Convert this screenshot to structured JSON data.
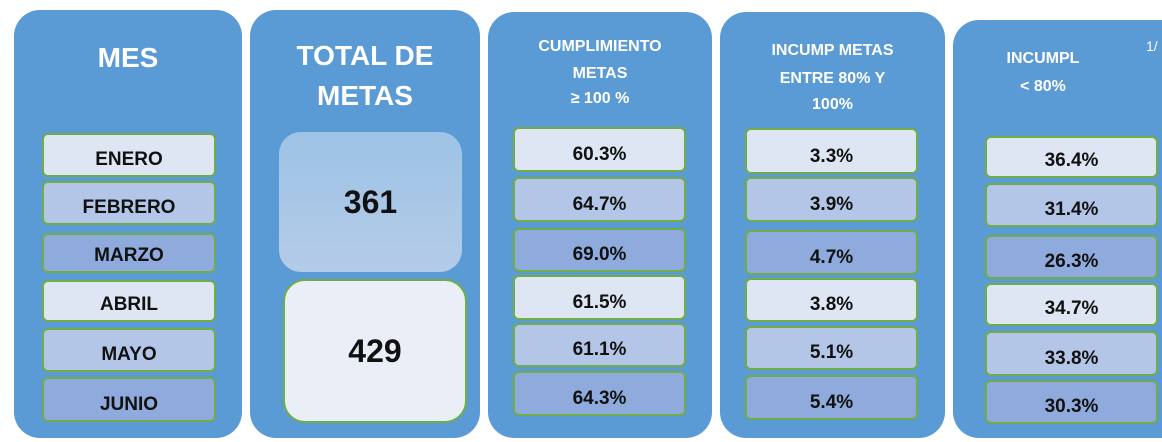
{
  "page_number": "1/",
  "columns": [
    {
      "header": [
        "MES"
      ],
      "cells": [
        "ENERO",
        "FEBRERO",
        "MARZO",
        "ABRIL",
        "MAYO",
        "JUNIO"
      ]
    },
    {
      "header": [
        "TOTAL DE",
        "METAS"
      ],
      "totals": [
        "361",
        "429"
      ]
    },
    {
      "header": [
        "CUMPLIMIENTO",
        "METAS",
        "≥ 100 %"
      ],
      "cells": [
        "60.3%",
        "64.7%",
        "69.0%",
        "61.5%",
        "61.1%",
        "64.3%"
      ]
    },
    {
      "header": [
        "INCUMP METAS",
        "ENTRE 80% Y",
        "100%"
      ],
      "cells": [
        "3.3%",
        "3.9%",
        "4.7%",
        "3.8%",
        "5.1%",
        "5.4%"
      ]
    },
    {
      "header": [
        "INCUMPL",
        "< 80%"
      ],
      "cells": [
        "36.4%",
        "31.4%",
        "26.3%",
        "34.7%",
        "33.8%",
        "30.3%"
      ]
    }
  ]
}
